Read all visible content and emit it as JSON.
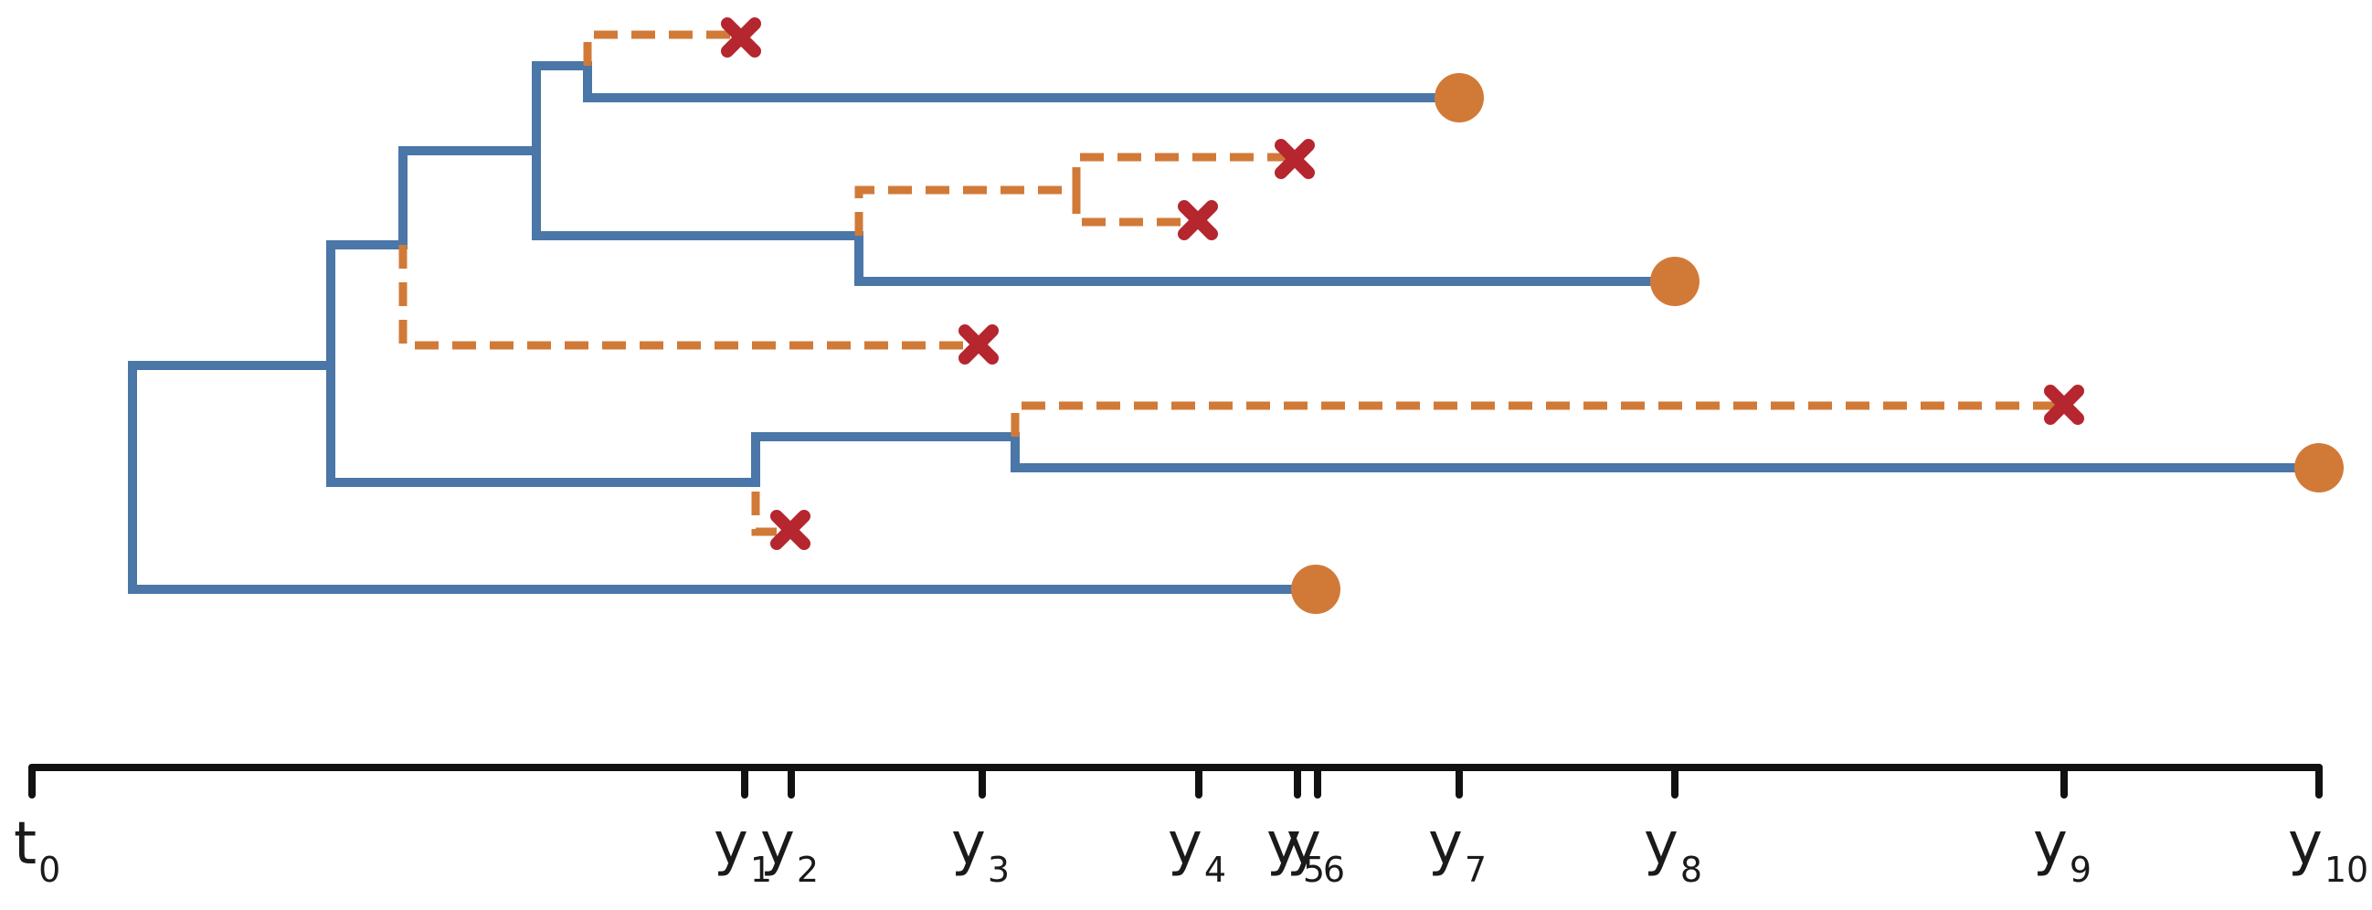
{
  "axis": {
    "ticks": [
      {
        "sym": "t",
        "sub": "0"
      },
      {
        "sym": "y",
        "sub": "1"
      },
      {
        "sym": "y",
        "sub": "2"
      },
      {
        "sym": "y",
        "sub": "3"
      },
      {
        "sym": "y",
        "sub": "4"
      },
      {
        "sym": "y",
        "sub": "5"
      },
      {
        "sym": "y",
        "sub": "6"
      },
      {
        "sym": "y",
        "sub": "7"
      },
      {
        "sym": "y",
        "sub": "8"
      },
      {
        "sym": "y",
        "sub": "9"
      },
      {
        "sym": "y",
        "sub": "10"
      }
    ]
  },
  "colors": {
    "observed_branch": "#4a76a8",
    "unobserved_branch": "#d17a38",
    "sampled_tip": "#d17a38",
    "extinct_marker": "#b5262f",
    "axis": "#111111"
  },
  "legend_symbols": {
    "sampled_tip": "circle",
    "extinct_tip": "x-mark"
  }
}
